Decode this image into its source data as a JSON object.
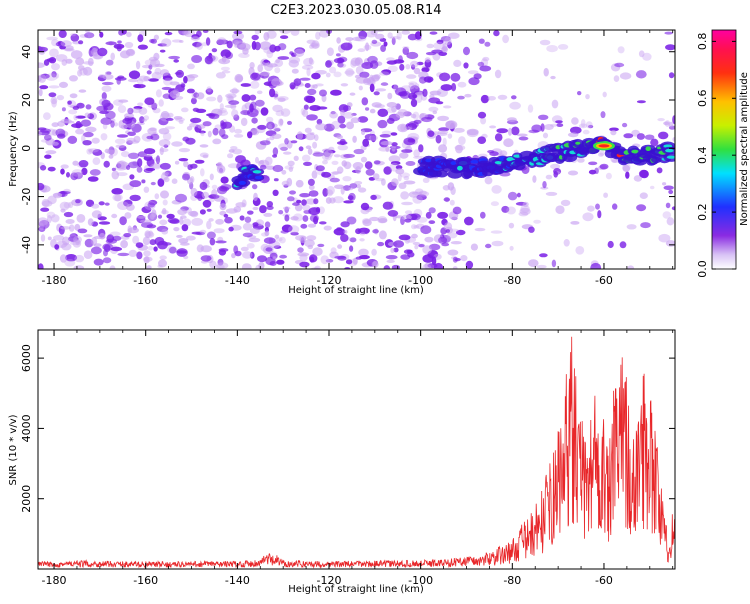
{
  "title": "C2E3.2023.030.05.08.R14",
  "colors": {
    "snr_line": "#e8272a",
    "speckle": "#7a1fe6",
    "speckle_light": "#c9a3f2",
    "echo_hot": "#ff2020",
    "echo_green": "#36e04a",
    "echo_cyan": "#12e6d6"
  },
  "chart_data": [
    {
      "type": "heatmap",
      "xlabel": "Height of straight line (km)",
      "ylabel": "Frequency (Hz)",
      "xlim": [
        -183.5,
        -44.5
      ],
      "ylim": [
        -50,
        49
      ],
      "xticks": [
        -180,
        -160,
        -140,
        -120,
        -100,
        -80,
        -60
      ],
      "yticks": [
        -40,
        -20,
        0,
        20,
        40
      ],
      "colorbar": {
        "label": "Normalized spectral amplitude",
        "range": [
          0.0,
          0.84
        ],
        "ticks": [
          0.0,
          0.2,
          0.4,
          0.6,
          0.8
        ],
        "colormap": "rainbow (white, violet, blue, cyan, green, yellow, orange, red, magenta)"
      },
      "echo_trace": {
        "x": [
          -140,
          -135,
          -100,
          -95,
          -90,
          -85,
          -80,
          -75,
          -70,
          -65,
          -60,
          -55,
          -50,
          -45
        ],
        "y": [
          -13,
          -9,
          -7,
          -8,
          -8,
          -8,
          -6,
          -4,
          -2,
          0,
          1,
          -3,
          -3,
          -1
        ],
        "peak_amplitude": [
          0.3,
          0.35,
          0.22,
          0.25,
          0.28,
          0.3,
          0.35,
          0.4,
          0.5,
          0.45,
          0.84,
          0.5,
          0.55,
          0.4
        ]
      },
      "grid": false
    },
    {
      "type": "line",
      "xlabel": "Height of straight line (km)",
      "ylabel": "SNR (10 * v/v)",
      "xlim": [
        -183.5,
        -44.5
      ],
      "ylim": [
        0,
        6800
      ],
      "xticks": [
        -180,
        -160,
        -140,
        -120,
        -100,
        -80,
        -60
      ],
      "yticks": [
        2000,
        4000,
        6000
      ],
      "series": [
        {
          "x": [
            -183.5,
            -175,
            -165,
            -155,
            -145,
            -140,
            -135,
            -134,
            -130,
            -120,
            -110,
            -100,
            -95,
            -90,
            -88,
            -85,
            -82,
            -80,
            -78,
            -76,
            -74,
            -72,
            -70,
            -68,
            -67,
            -66,
            -64,
            -62,
            -60,
            -59,
            -58,
            -56,
            -55,
            -54,
            -52,
            -50,
            -48,
            -47,
            -46,
            -45
          ],
          "y": [
            150,
            170,
            160,
            150,
            165,
            160,
            200,
            500,
            180,
            160,
            170,
            180,
            200,
            260,
            300,
            500,
            650,
            800,
            1200,
            1500,
            2000,
            2800,
            3800,
            5500,
            6700,
            5000,
            3500,
            5200,
            4200,
            3000,
            4800,
            6000,
            5800,
            3000,
            5400,
            5700,
            3000,
            1800,
            800,
            1700
          ]
        }
      ],
      "grid": false
    }
  ]
}
